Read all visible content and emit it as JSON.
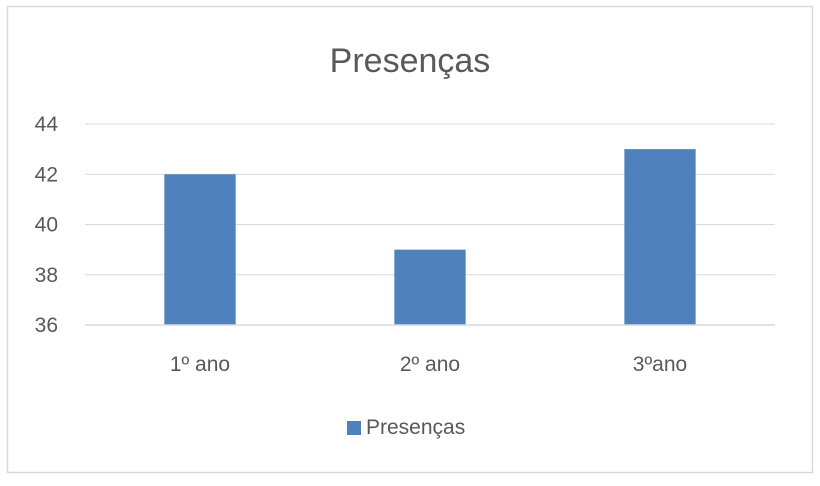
{
  "chart_data": {
    "type": "bar",
    "title": "Presenças",
    "categories": [
      "1º ano",
      "2º ano",
      "3ºano"
    ],
    "series": [
      {
        "name": "Presenças",
        "values": [
          42,
          39,
          43
        ],
        "color": "#4f81bd"
      }
    ],
    "ylim": [
      36,
      44
    ],
    "yticks": [
      36,
      38,
      40,
      42,
      44
    ],
    "xlabel": "",
    "ylabel": "",
    "grid": true,
    "legend_position": "bottom"
  }
}
